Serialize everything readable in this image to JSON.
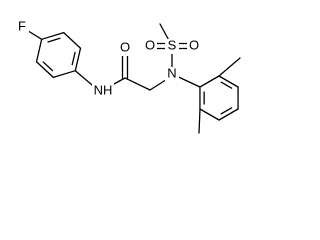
{
  "atoms": [
    {
      "label": "F"
    },
    {
      "label": "NH"
    },
    {
      "label": "O"
    },
    {
      "label": "O"
    },
    {
      "label": "S"
    },
    {
      "label": "O"
    },
    {
      "label": "N"
    }
  ]
}
